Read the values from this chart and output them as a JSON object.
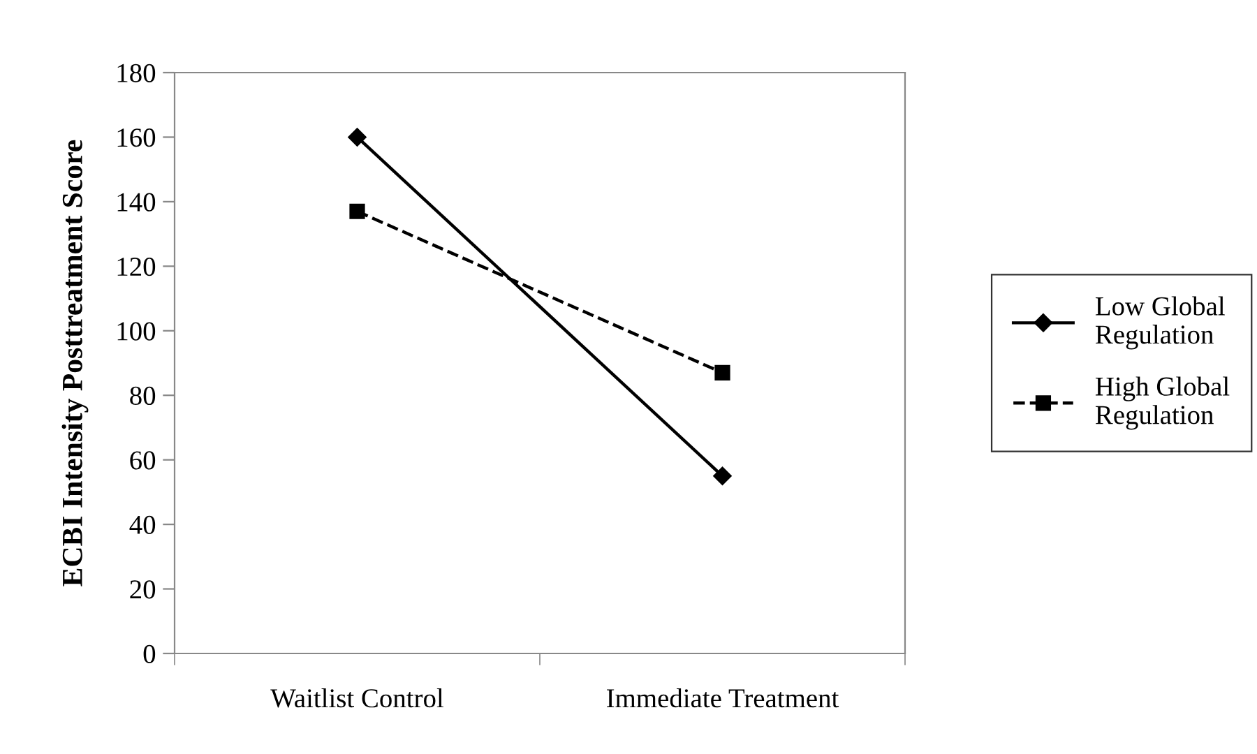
{
  "chart_data": {
    "type": "line",
    "ylabel": "ECBI Intensity Posttreatment Score",
    "categories": [
      "Waitlist Control",
      "Immediate Treatment"
    ],
    "series": [
      {
        "name": "Low Global Regulation",
        "color": "#000000",
        "values": [
          160,
          55
        ],
        "marker": "diamond",
        "line_style": "solid"
      },
      {
        "name": "High Global Regulation",
        "color": "#000000",
        "values": [
          137,
          87
        ],
        "marker": "square",
        "line_style": "dashed"
      }
    ],
    "ylim": [
      0,
      180
    ],
    "yticks": [
      0,
      20,
      40,
      60,
      80,
      100,
      120,
      140,
      160,
      180
    ],
    "grid": false,
    "legend": "right"
  }
}
